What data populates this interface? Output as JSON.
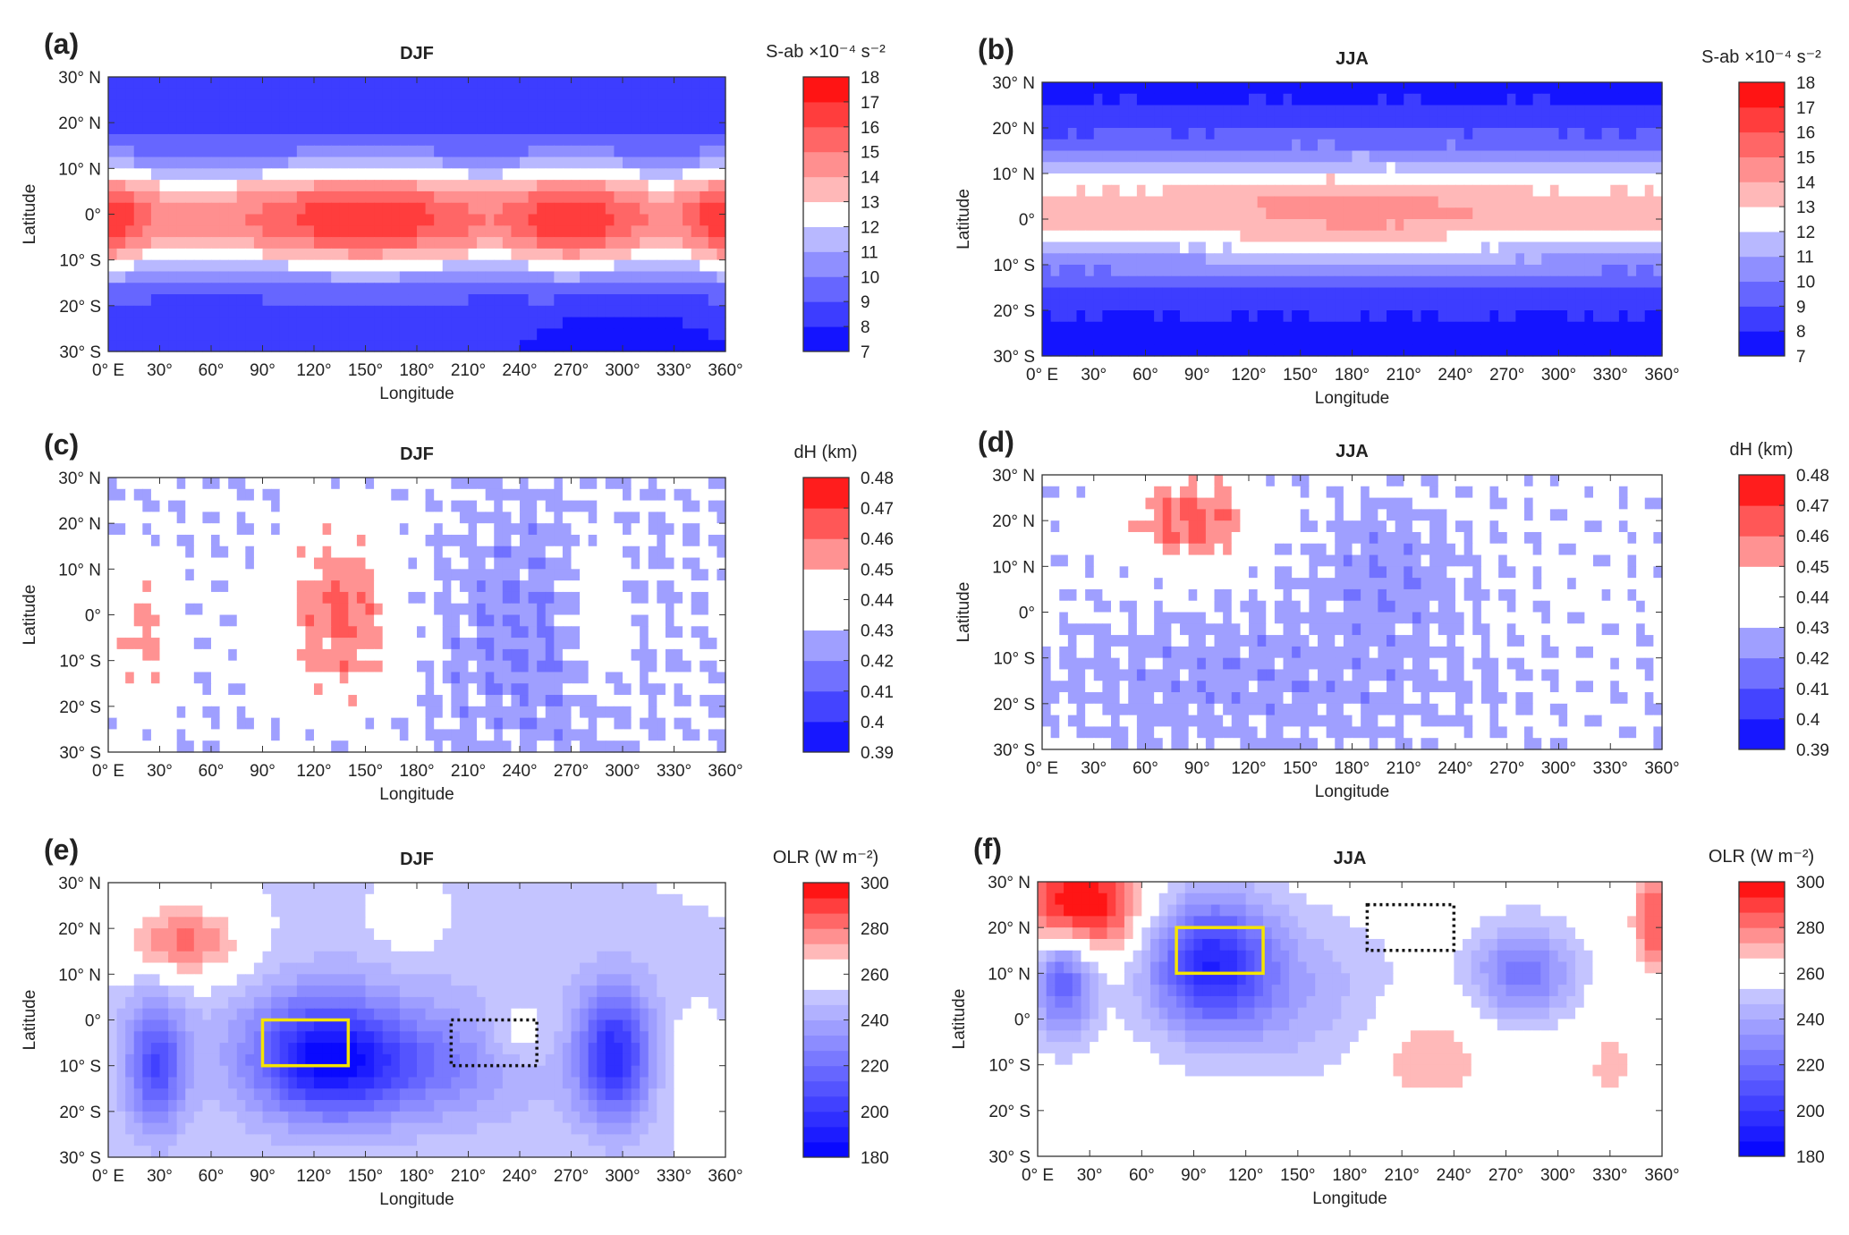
{
  "chart_data": [
    {
      "panel": "(a)",
      "title": "DJF",
      "type": "heatmap",
      "field": "sab_djf",
      "xlabel": "Longitude",
      "ylabel": "Latitude",
      "xticks": [
        "0° E",
        "30°",
        "60°",
        "90°",
        "120°",
        "150°",
        "180°",
        "210°",
        "240°",
        "270°",
        "300°",
        "330°",
        "360°"
      ],
      "yticks": [
        "30° N",
        "20° N",
        "10° N",
        "0°",
        "10° S",
        "20° S",
        "30° S"
      ],
      "xlim": [
        0,
        360
      ],
      "ylim": [
        -30,
        30
      ],
      "colorbar": {
        "title": "S-ab ×10⁻⁴ s⁻²",
        "min": 7,
        "max": 18,
        "bands": 11,
        "white": [
          12,
          13
        ],
        "ticks": [
          "18",
          "17",
          "16",
          "15",
          "14",
          "13",
          "12",
          "11",
          "10",
          "9",
          "8",
          "7"
        ]
      },
      "boxes": []
    },
    {
      "panel": "(b)",
      "title": "JJA",
      "type": "heatmap",
      "field": "sab_jja",
      "xlabel": "Longitude",
      "ylabel": "Latitude",
      "xticks": [
        "0° E",
        "30°",
        "60°",
        "90°",
        "120°",
        "150°",
        "180°",
        "210°",
        "240°",
        "270°",
        "300°",
        "330°",
        "360°"
      ],
      "yticks": [
        "30° N",
        "20° N",
        "10° N",
        "0°",
        "10° S",
        "20° S",
        "30° S"
      ],
      "xlim": [
        0,
        360
      ],
      "ylim": [
        -30,
        30
      ],
      "colorbar": {
        "title": "S-ab ×10⁻⁴ s⁻²",
        "min": 7,
        "max": 18,
        "bands": 11,
        "white": [
          12,
          13
        ],
        "ticks": [
          "18",
          "17",
          "16",
          "15",
          "14",
          "13",
          "12",
          "11",
          "10",
          "9",
          "8",
          "7"
        ]
      },
      "boxes": []
    },
    {
      "panel": "(c)",
      "title": "DJF",
      "type": "heatmap",
      "field": "dh_djf",
      "xlabel": "Longitude",
      "ylabel": "Latitude",
      "xticks": [
        "0° E",
        "30°",
        "60°",
        "90°",
        "120°",
        "150°",
        "180°",
        "210°",
        "240°",
        "270°",
        "300°",
        "330°",
        "360°"
      ],
      "yticks": [
        "30° N",
        "20° N",
        "10° N",
        "0°",
        "10° S",
        "20° S",
        "30° S"
      ],
      "xlim": [
        0,
        360
      ],
      "ylim": [
        -30,
        30
      ],
      "colorbar": {
        "title": "dH (km)",
        "min": 0.39,
        "max": 0.48,
        "bands": 9,
        "white": [
          0.435,
          0.445
        ],
        "ticks": [
          "0.48",
          "0.47",
          "0.46",
          "0.45",
          "0.44",
          "0.43",
          "0.42",
          "0.41",
          "0.4",
          "0.39"
        ]
      },
      "boxes": []
    },
    {
      "panel": "(d)",
      "title": "JJA",
      "type": "heatmap",
      "field": "dh_jja",
      "xlabel": "Longitude",
      "ylabel": "Latitude",
      "xticks": [
        "0° E",
        "30°",
        "60°",
        "90°",
        "120°",
        "150°",
        "180°",
        "210°",
        "240°",
        "270°",
        "300°",
        "330°",
        "360°"
      ],
      "yticks": [
        "30° N",
        "20° N",
        "10° N",
        "0°",
        "10° S",
        "20° S",
        "30° S"
      ],
      "xlim": [
        0,
        360
      ],
      "ylim": [
        -30,
        30
      ],
      "colorbar": {
        "title": "dH (km)",
        "min": 0.39,
        "max": 0.48,
        "bands": 9,
        "white": [
          0.435,
          0.445
        ],
        "ticks": [
          "0.48",
          "0.47",
          "0.46",
          "0.45",
          "0.44",
          "0.43",
          "0.42",
          "0.41",
          "0.4",
          "0.39"
        ]
      },
      "boxes": []
    },
    {
      "panel": "(e)",
      "title": "DJF",
      "type": "heatmap",
      "field": "olr_djf",
      "xlabel": "Longitude",
      "ylabel": "Latitude",
      "xticks": [
        "0° E",
        "30°",
        "60°",
        "90°",
        "120°",
        "150°",
        "180°",
        "210°",
        "240°",
        "270°",
        "300°",
        "330°",
        "360°"
      ],
      "yticks": [
        "30° N",
        "20° N",
        "10° N",
        "0°",
        "10° S",
        "20° S",
        "30° S"
      ],
      "xlim": [
        0,
        360
      ],
      "ylim": [
        -30,
        30
      ],
      "colorbar": {
        "title": "OLR (W m⁻²)",
        "min": 180,
        "max": 300,
        "bands": 18,
        "white": [
          253,
          267
        ],
        "ticks": [
          "300",
          "280",
          "260",
          "240",
          "220",
          "200",
          "180"
        ]
      },
      "boxes": [
        {
          "style": "solid",
          "color": "#f5e400",
          "lon": [
            90,
            140
          ],
          "lat": [
            -10,
            0
          ]
        },
        {
          "style": "dotted",
          "color": "#111111",
          "lon": [
            200,
            250
          ],
          "lat": [
            -10,
            0
          ]
        }
      ]
    },
    {
      "panel": "(f)",
      "title": "JJA",
      "type": "heatmap",
      "field": "olr_jja",
      "xlabel": "Longitude",
      "ylabel": "Latitude",
      "xticks": [
        "0° E",
        "30°",
        "60°",
        "90°",
        "120°",
        "150°",
        "180°",
        "210°",
        "240°",
        "270°",
        "300°",
        "330°",
        "360°"
      ],
      "yticks": [
        "30° N",
        "20° N",
        "10° N",
        "0°",
        "10° S",
        "20° S",
        "30° S"
      ],
      "xlim": [
        0,
        360
      ],
      "ylim": [
        -30,
        30
      ],
      "colorbar": {
        "title": "OLR (W m⁻²)",
        "min": 180,
        "max": 300,
        "bands": 18,
        "white": [
          253,
          267
        ],
        "ticks": [
          "300",
          "280",
          "260",
          "240",
          "220",
          "200",
          "180"
        ]
      },
      "boxes": [
        {
          "style": "solid",
          "color": "#f5e400",
          "lon": [
            80,
            130
          ],
          "lat": [
            10,
            20
          ]
        },
        {
          "style": "dotted",
          "color": "#111111",
          "lon": [
            190,
            240
          ],
          "lat": [
            15,
            25
          ]
        }
      ]
    }
  ]
}
